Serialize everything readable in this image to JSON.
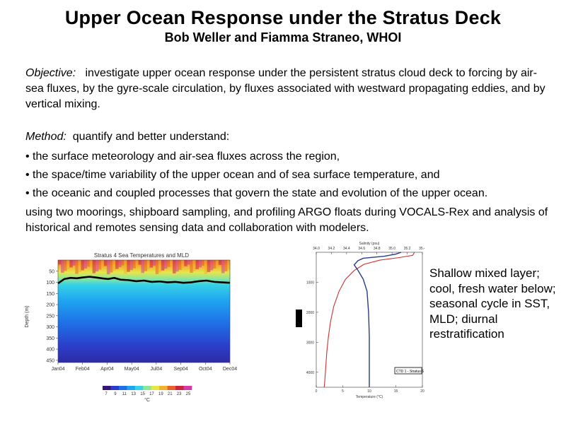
{
  "header": {
    "title": "Upper Ocean Response under the Stratus Deck",
    "authors": "Bob Weller and Fiamma Straneo, WHOI"
  },
  "body": {
    "objective_label": "Objective:",
    "objective_text": "investigate upper ocean response under the persistent stratus cloud deck to forcing by air-sea fluxes, by the gyre-scale circulation, by fluxes associated with westward propagating eddies, and by vertical mixing.",
    "method_label": "Method:",
    "method_text": "quantify and better understand:",
    "bullets": [
      "• the surface meteorology and air-sea fluxes across the region,",
      "• the space/time variability of the upper ocean and of sea surface temperature, and",
      "• the oceanic and coupled processes that govern the state and evolution of the upper ocean."
    ],
    "using_text": "using two moorings, shipboard sampling, and profiling ARGO floats during VOCALS-Rex and analysis of historical and remotes sensing data and collaboration with modelers."
  },
  "side_note": "Shallow mixed layer; cool, fresh water below; seasonal cycle in SST, MLD; diurnal restratification",
  "chart_data": [
    {
      "type": "heatmap",
      "title": "Stratus 4 Sea Temperatures and MLD",
      "xlabel": "",
      "ylabel": "Depth (m)",
      "x_ticks": [
        "Jan04",
        "Feb04",
        "Apr04",
        "May04",
        "Jul04",
        "Sep04",
        "Oct04",
        "Dec04"
      ],
      "y_ticks": [
        50,
        100,
        150,
        200,
        250,
        300,
        350,
        400,
        450
      ],
      "ylim": [
        460,
        0
      ],
      "colorbar": {
        "label": "°C",
        "ticks": [
          7,
          9,
          11,
          13,
          15,
          17,
          19,
          21,
          23,
          25
        ],
        "colors": [
          "#3a1478",
          "#2c3cc8",
          "#1f6fe6",
          "#1ea4f0",
          "#36d2e6",
          "#8fe69a",
          "#e6e64a",
          "#f2b12e",
          "#e8602a",
          "#cc2244",
          "#d23ca8"
        ]
      },
      "mld_series": {
        "name": "MLD",
        "color": "#000000",
        "x_month": [
          0,
          0.4,
          0.8,
          1.2,
          1.6,
          2.0,
          2.4,
          2.8,
          3.2,
          3.6,
          4.0,
          4.5,
          5.0,
          5.5,
          6.0,
          6.5,
          7.0,
          7.5,
          8.0,
          8.5,
          9.0,
          9.5,
          10.0,
          10.5,
          11.0
        ],
        "depth": [
          105,
          85,
          80,
          82,
          78,
          75,
          78,
          82,
          85,
          80,
          88,
          90,
          95,
          92,
          98,
          96,
          100,
          98,
          102,
          100,
          95,
          92,
          98,
          100,
          102
        ]
      }
    },
    {
      "type": "line",
      "title": "",
      "top_axis_label": "Salinity (psu)",
      "xlabel": "Temperature (°C)",
      "ylabel": "",
      "x_ticks": [
        0,
        5,
        10,
        15,
        20
      ],
      "xlim": [
        0,
        20
      ],
      "top_ticks": [
        "34.0",
        "34.2",
        "34.4",
        "34.6",
        "34.8",
        "35.0",
        "35.2",
        "35.4"
      ],
      "top_lim": [
        34.0,
        35.4
      ],
      "y_ticks": [
        1000,
        2000,
        3000,
        4000
      ],
      "ylim": [
        4500,
        0
      ],
      "series": [
        {
          "color": "#d03030",
          "depth": [
            0,
            100,
            180,
            260,
            400,
            600,
            900,
            1300,
            1800,
            2300,
            2800,
            3300,
            3800,
            4300,
            4500
          ],
          "values": [
            18.5,
            18.2,
            15.5,
            12.0,
            9.0,
            7.2,
            5.5,
            4.3,
            3.3,
            2.7,
            2.3,
            2.0,
            1.8,
            1.6,
            1.5
          ]
        },
        {
          "color": "#2a3a8a",
          "salinity_depth": [
            0,
            60,
            130,
            200,
            280,
            420,
            600,
            900,
            1300,
            2000,
            2800,
            3500,
            4300,
            4500
          ],
          "salinity": [
            35.12,
            35.05,
            34.9,
            34.62,
            34.55,
            34.5,
            34.55,
            34.62,
            34.67,
            34.69,
            34.7,
            34.7,
            34.7,
            34.7
          ]
        }
      ],
      "legend": "CTD 1 - Stratus 6",
      "legend_position": "bottom-right"
    }
  ]
}
